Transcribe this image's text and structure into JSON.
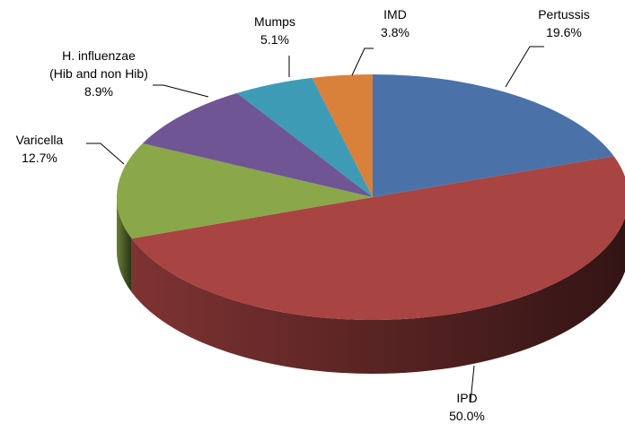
{
  "chart_data": {
    "type": "pie3d",
    "categories": [
      "Pertussis",
      "IPD",
      "Varicella",
      "H. influenzae\n(Hib and non Hib)",
      "Mumps",
      "IMD"
    ],
    "values": [
      19.6,
      50.0,
      12.7,
      8.9,
      5.1,
      3.8
    ],
    "value_labels": [
      "19.6%",
      "50.0%",
      "12.7%",
      "8.9%",
      "5.1%",
      "3.8%"
    ],
    "colors": [
      "#4a72a8",
      "#a84442",
      "#8aa74a",
      "#6f5593",
      "#3e9bb5",
      "#d9803a"
    ]
  }
}
